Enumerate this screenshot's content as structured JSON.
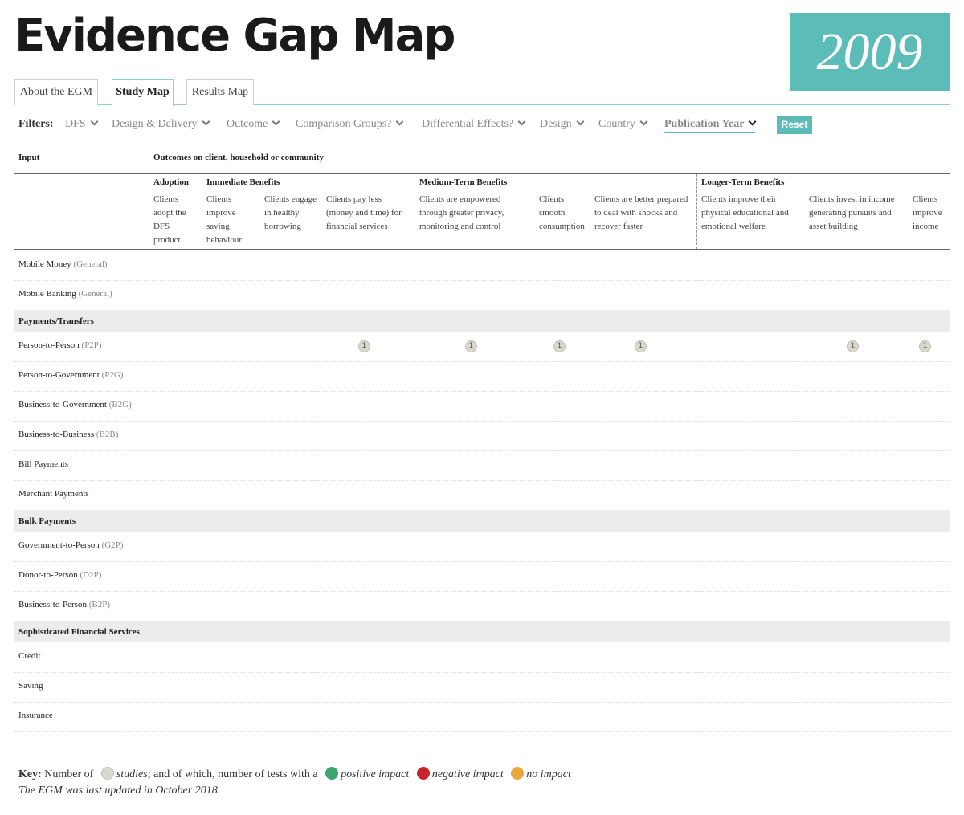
{
  "header": {
    "title": "Evidence Gap Map",
    "year": "2009"
  },
  "tabs": [
    {
      "label": "About the EGM"
    },
    {
      "label": "Study Map",
      "active": true
    },
    {
      "label": "Results Map"
    }
  ],
  "filters": {
    "label": "Filters:",
    "items": [
      "DFS",
      "Design & Delivery",
      "Outcome",
      "Comparison Groups?",
      "Differential Effects?",
      "Design",
      "Country",
      "Publication Year"
    ],
    "active": "Publication Year",
    "reset_label": "Reset"
  },
  "table": {
    "input_header": "Input",
    "outcomes_header": "Outcomes on client, household or community",
    "groups": [
      {
        "name": "Adoption"
      },
      {
        "name": "Immediate Benefits"
      },
      {
        "name": "Medium-Term Benefits"
      },
      {
        "name": "Longer-Term Benefits"
      }
    ],
    "columns": [
      [
        "Clients",
        "adopt the",
        "DFS",
        "product"
      ],
      [
        "Clients",
        "improve",
        "saving",
        "behaviour"
      ],
      [
        "Clients engage",
        "in healthy",
        "borrowing"
      ],
      [
        "Clients pay less",
        "(money and time) for",
        "financial services"
      ],
      [
        "Clients are empowered",
        "through greater privacy,",
        "monitoring and control"
      ],
      [
        "Clients",
        "smooth",
        "consumption"
      ],
      [
        "Clients are better prepared",
        "to deal with shocks and",
        "recover faster"
      ],
      [
        "Clients improve their",
        "physical educational and",
        "emotional welfare"
      ],
      [
        "Clients invest in income",
        "generating pursuits and",
        "asset building"
      ],
      [
        "Clients",
        "improve",
        "income"
      ]
    ],
    "rows": [
      {
        "label": "Mobile Money",
        "abbr": "(General)"
      },
      {
        "label": "Mobile Banking",
        "abbr": "(General)"
      },
      {
        "section": "Payments/Transfers"
      },
      {
        "label": "Person-to-Person",
        "abbr": "(P2P)",
        "counts": {
          "3": "1",
          "4": "1",
          "5": "1",
          "6": "1",
          "8": "1",
          "9": "1"
        }
      },
      {
        "label": "Person-to-Government",
        "abbr": "(P2G)"
      },
      {
        "label": "Business-to-Government",
        "abbr": "(B2G)"
      },
      {
        "label": "Business-to-Business",
        "abbr": "(B2B)"
      },
      {
        "label": "Bill Payments",
        "abbr": ""
      },
      {
        "label": "Merchant Payments",
        "abbr": ""
      },
      {
        "section": "Bulk Payments"
      },
      {
        "label": "Government-to-Person",
        "abbr": "(G2P)"
      },
      {
        "label": "Donor-to-Person",
        "abbr": "(D2P)"
      },
      {
        "label": "Business-to-Person",
        "abbr": "(B2P)"
      },
      {
        "section": "Sophisticated Financial Services"
      },
      {
        "label": "Credit",
        "abbr": ""
      },
      {
        "label": "Saving",
        "abbr": ""
      },
      {
        "label": "Insurance",
        "abbr": ""
      }
    ]
  },
  "key": {
    "label": "Key:",
    "number_of": "Number of",
    "studies": "studies",
    "and_which": "; and of which, number of tests with a",
    "positive": "positive impact",
    "negative": "negative impact",
    "none": "no impact",
    "colors": {
      "studies": "#d9d8cd",
      "positive": "#3aa56f",
      "negative": "#c8242b",
      "none": "#e9a83c"
    }
  },
  "updated": "The EGM was last updated in October 2018."
}
